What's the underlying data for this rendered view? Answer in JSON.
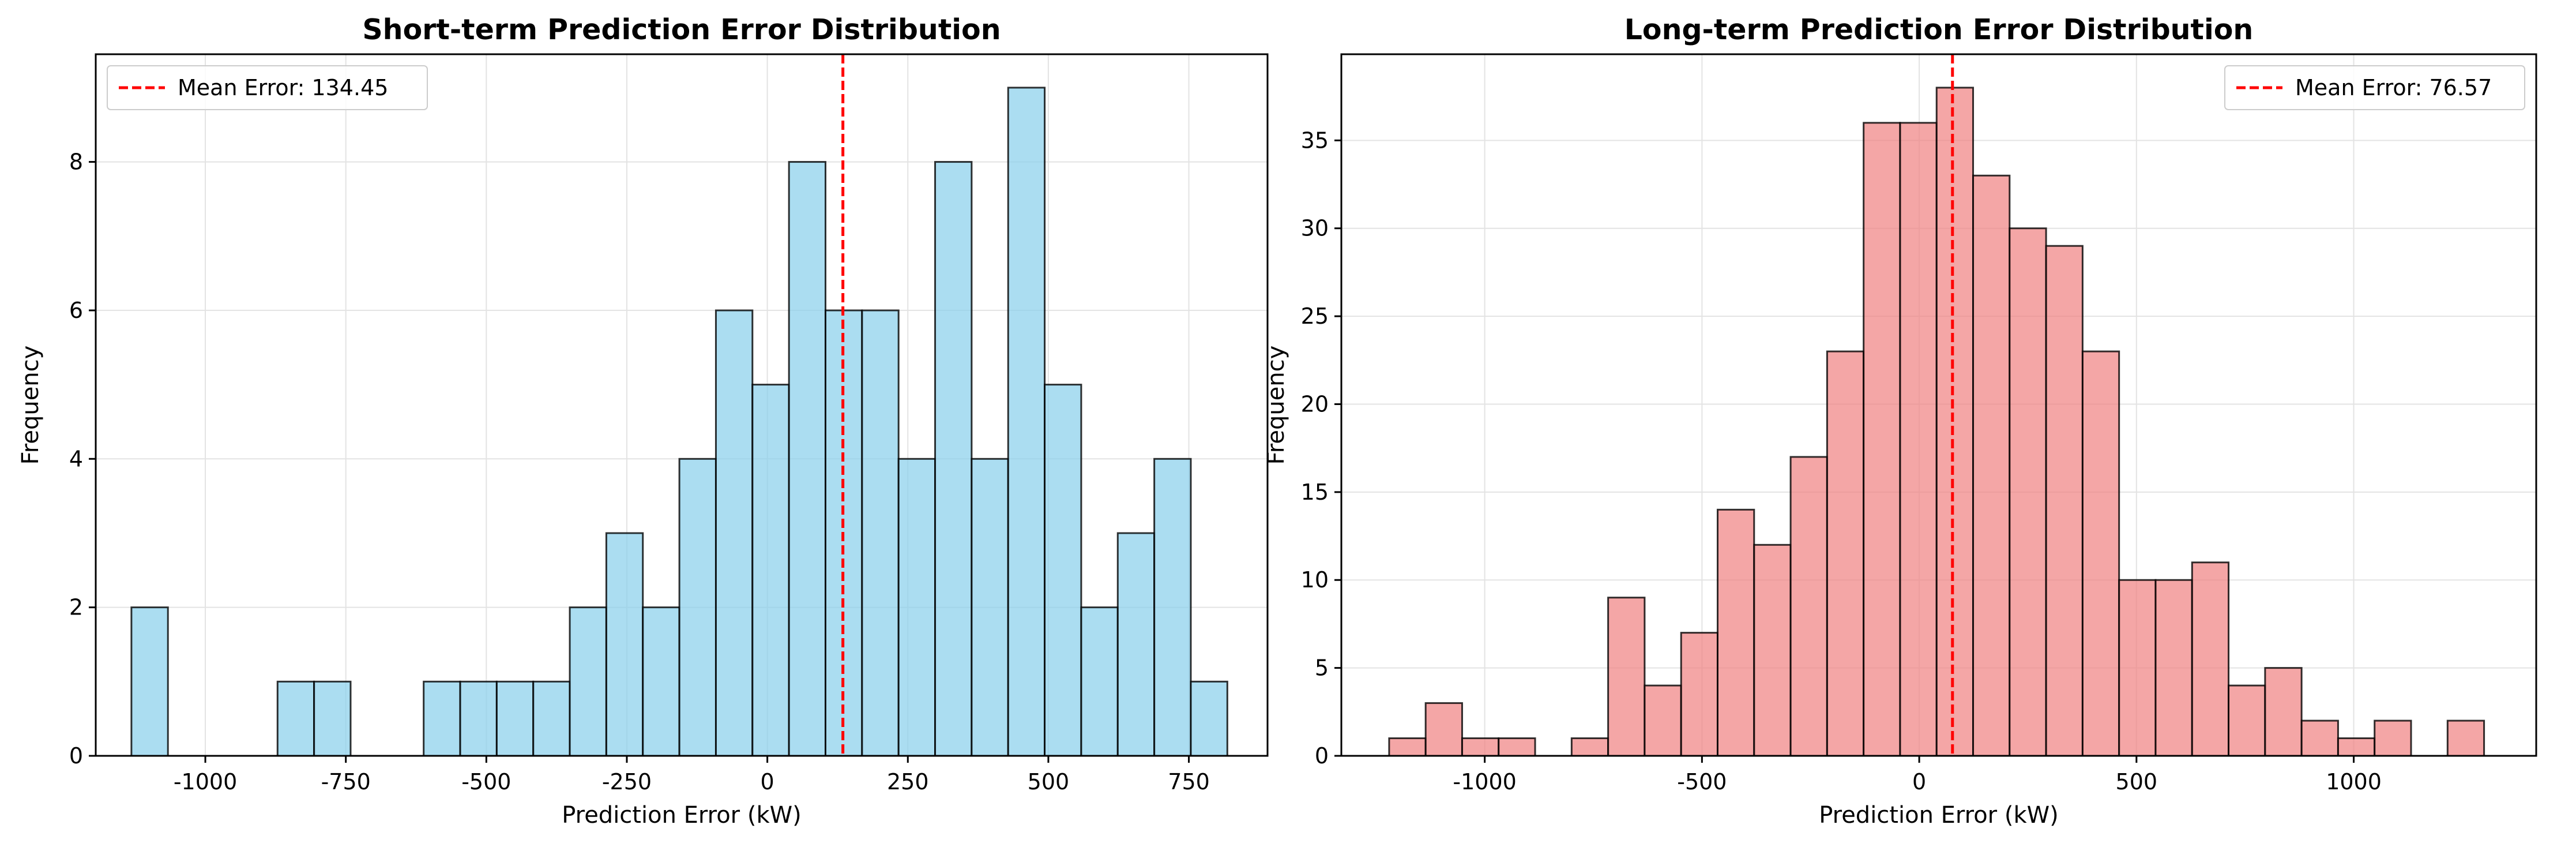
{
  "chart_data": [
    {
      "type": "bar",
      "title": "Short-term Prediction Error Distribution",
      "xlabel": "Prediction Error (kW)",
      "ylabel": "Frequency",
      "xlim": [
        -1195,
        890
      ],
      "ylim": [
        0,
        9.45
      ],
      "bin_start": -1131.5,
      "bin_width": 65.0,
      "values": [
        2,
        0,
        0,
        0,
        1,
        1,
        0,
        0,
        1,
        1,
        1,
        1,
        2,
        3,
        2,
        4,
        6,
        5,
        8,
        6,
        6,
        4,
        8,
        4,
        9,
        5,
        2,
        3,
        4,
        1
      ],
      "xticks": [
        -1000,
        -750,
        -500,
        -250,
        0,
        250,
        500,
        750
      ],
      "xtick_labels": [
        "-1000",
        "-750",
        "-500",
        "-250",
        "0",
        "250",
        "500",
        "750"
      ],
      "yticks": [
        0,
        2,
        4,
        6,
        8
      ],
      "ytick_labels": [
        "0",
        "2",
        "4",
        "6",
        "8"
      ],
      "mean_line": {
        "value": 134.45,
        "label": "Mean Error: 134.45"
      },
      "legend_position": "top-left",
      "grid": true,
      "colors": {
        "bar": "#87ceeb",
        "edge": "#000000",
        "mean": "#ff0000"
      }
    },
    {
      "type": "bar",
      "title": "Long-term Prediction Error Distribution",
      "xlabel": "Prediction Error (kW)",
      "ylabel": "Frequency",
      "xlim": [
        -1330,
        1420
      ],
      "ylim": [
        0,
        39.9
      ],
      "bin_start": -1220,
      "bin_width": 84.0,
      "values": [
        1,
        3,
        1,
        1,
        0,
        1,
        9,
        4,
        7,
        14,
        12,
        17,
        23,
        36,
        36,
        38,
        33,
        30,
        29,
        23,
        10,
        10,
        11,
        4,
        5,
        2,
        1,
        2,
        0,
        2
      ],
      "xticks": [
        -1000,
        -500,
        0,
        500,
        1000
      ],
      "xtick_labels": [
        "-1000",
        "-500",
        "0",
        "500",
        "1000"
      ],
      "yticks": [
        0,
        5,
        10,
        15,
        20,
        25,
        30,
        35
      ],
      "ytick_labels": [
        "0",
        "5",
        "10",
        "15",
        "20",
        "25",
        "30",
        "35"
      ],
      "mean_line": {
        "value": 76.57,
        "label": "Mean Error: 76.57"
      },
      "legend_position": "top-right",
      "grid": true,
      "colors": {
        "bar": "#f08080",
        "edge": "#000000",
        "mean": "#ff0000"
      }
    }
  ]
}
